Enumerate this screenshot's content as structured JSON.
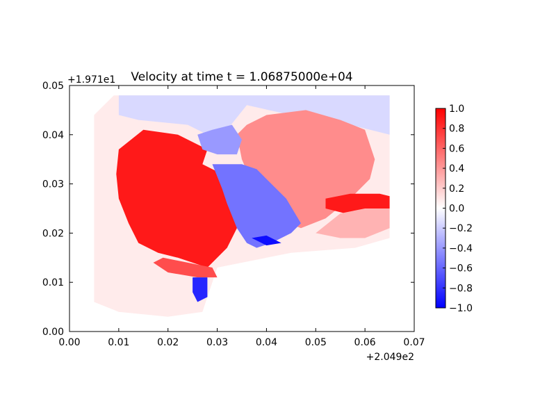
{
  "chart_data": {
    "type": "heatmap",
    "title": "Velocity at time t = 1.06875000e+04",
    "xlabel": "",
    "ylabel": "",
    "x_offset_label": "+2.049e2",
    "y_offset_label": "+1.971e1",
    "x_ticks": [
      "0.00",
      "0.01",
      "0.02",
      "0.03",
      "0.04",
      "0.05",
      "0.06",
      "0.07"
    ],
    "y_ticks": [
      "0.00",
      "0.01",
      "0.02",
      "0.03",
      "0.04",
      "0.05"
    ],
    "xlim": [
      0.0,
      0.07
    ],
    "ylim": [
      0.0,
      0.05
    ],
    "colormap": "bwr",
    "colorbar": {
      "ticks": [
        "1.0",
        "0.8",
        "0.6",
        "0.4",
        "0.2",
        "0.0",
        "−0.2",
        "−0.4",
        "−0.6",
        "−0.8",
        "−1.0"
      ],
      "range": [
        -1.0,
        1.0
      ]
    },
    "regions": [
      {
        "value": 0.08,
        "polygon": [
          [
            0.005,
            0.006
          ],
          [
            0.005,
            0.044
          ],
          [
            0.009,
            0.048
          ],
          [
            0.065,
            0.048
          ],
          [
            0.065,
            0.019
          ],
          [
            0.058,
            0.017
          ],
          [
            0.045,
            0.016
          ],
          [
            0.03,
            0.013
          ],
          [
            0.027,
            0.004
          ],
          [
            0.02,
            0.003
          ],
          [
            0.01,
            0.004
          ]
        ]
      },
      {
        "value": -0.15,
        "polygon": [
          [
            0.01,
            0.048
          ],
          [
            0.065,
            0.048
          ],
          [
            0.065,
            0.04
          ],
          [
            0.057,
            0.042
          ],
          [
            0.045,
            0.044
          ],
          [
            0.036,
            0.046
          ],
          [
            0.032,
            0.041
          ],
          [
            0.028,
            0.04
          ],
          [
            0.024,
            0.042
          ],
          [
            0.014,
            0.043
          ],
          [
            0.01,
            0.044
          ]
        ]
      },
      {
        "value": 0.9,
        "polygon": [
          [
            0.01,
            0.037
          ],
          [
            0.015,
            0.041
          ],
          [
            0.022,
            0.04
          ],
          [
            0.028,
            0.037
          ],
          [
            0.027,
            0.034
          ],
          [
            0.033,
            0.031
          ],
          [
            0.036,
            0.025
          ],
          [
            0.034,
            0.021
          ],
          [
            0.032,
            0.017
          ],
          [
            0.028,
            0.013
          ],
          [
            0.022,
            0.015
          ],
          [
            0.018,
            0.016
          ],
          [
            0.014,
            0.018
          ],
          [
            0.012,
            0.022
          ],
          [
            0.01,
            0.027
          ],
          [
            0.0095,
            0.032
          ]
        ]
      },
      {
        "value": 0.45,
        "polygon": [
          [
            0.034,
            0.04
          ],
          [
            0.036,
            0.042
          ],
          [
            0.04,
            0.044
          ],
          [
            0.048,
            0.045
          ],
          [
            0.055,
            0.043
          ],
          [
            0.06,
            0.041
          ],
          [
            0.062,
            0.035
          ],
          [
            0.061,
            0.031
          ],
          [
            0.057,
            0.027
          ],
          [
            0.052,
            0.023
          ],
          [
            0.047,
            0.021
          ],
          [
            0.042,
            0.023
          ],
          [
            0.038,
            0.028
          ],
          [
            0.035,
            0.035
          ]
        ]
      },
      {
        "value": -0.55,
        "polygon": [
          [
            0.029,
            0.034
          ],
          [
            0.035,
            0.034
          ],
          [
            0.038,
            0.033
          ],
          [
            0.044,
            0.027
          ],
          [
            0.047,
            0.022
          ],
          [
            0.045,
            0.02
          ],
          [
            0.041,
            0.018
          ],
          [
            0.038,
            0.017
          ],
          [
            0.036,
            0.018
          ],
          [
            0.034,
            0.021
          ],
          [
            0.032,
            0.026
          ],
          [
            0.031,
            0.029
          ]
        ]
      },
      {
        "value": -0.4,
        "polygon": [
          [
            0.026,
            0.04
          ],
          [
            0.029,
            0.041
          ],
          [
            0.033,
            0.042
          ],
          [
            0.035,
            0.039
          ],
          [
            0.034,
            0.036
          ],
          [
            0.03,
            0.036
          ],
          [
            0.027,
            0.037
          ]
        ]
      },
      {
        "value": 0.7,
        "polygon": [
          [
            0.017,
            0.014
          ],
          [
            0.02,
            0.012
          ],
          [
            0.026,
            0.011
          ],
          [
            0.03,
            0.011
          ],
          [
            0.029,
            0.013
          ],
          [
            0.024,
            0.014
          ],
          [
            0.019,
            0.015
          ]
        ]
      },
      {
        "value": -0.85,
        "polygon": [
          [
            0.025,
            0.011
          ],
          [
            0.028,
            0.011
          ],
          [
            0.028,
            0.007
          ],
          [
            0.026,
            0.006
          ],
          [
            0.025,
            0.008
          ]
        ]
      },
      {
        "value": 0.9,
        "polygon": [
          [
            0.052,
            0.027
          ],
          [
            0.057,
            0.028
          ],
          [
            0.063,
            0.028
          ],
          [
            0.065,
            0.0275
          ],
          [
            0.065,
            0.025
          ],
          [
            0.061,
            0.024
          ],
          [
            0.056,
            0.024
          ],
          [
            0.052,
            0.025
          ]
        ]
      },
      {
        "value": 0.3,
        "polygon": [
          [
            0.055,
            0.024
          ],
          [
            0.06,
            0.025
          ],
          [
            0.065,
            0.025
          ],
          [
            0.065,
            0.021
          ],
          [
            0.06,
            0.019
          ],
          [
            0.055,
            0.019
          ],
          [
            0.05,
            0.02
          ]
        ]
      },
      {
        "value": -0.95,
        "polygon": [
          [
            0.037,
            0.019
          ],
          [
            0.04,
            0.0175
          ],
          [
            0.043,
            0.018
          ],
          [
            0.04,
            0.0195
          ]
        ]
      }
    ]
  }
}
